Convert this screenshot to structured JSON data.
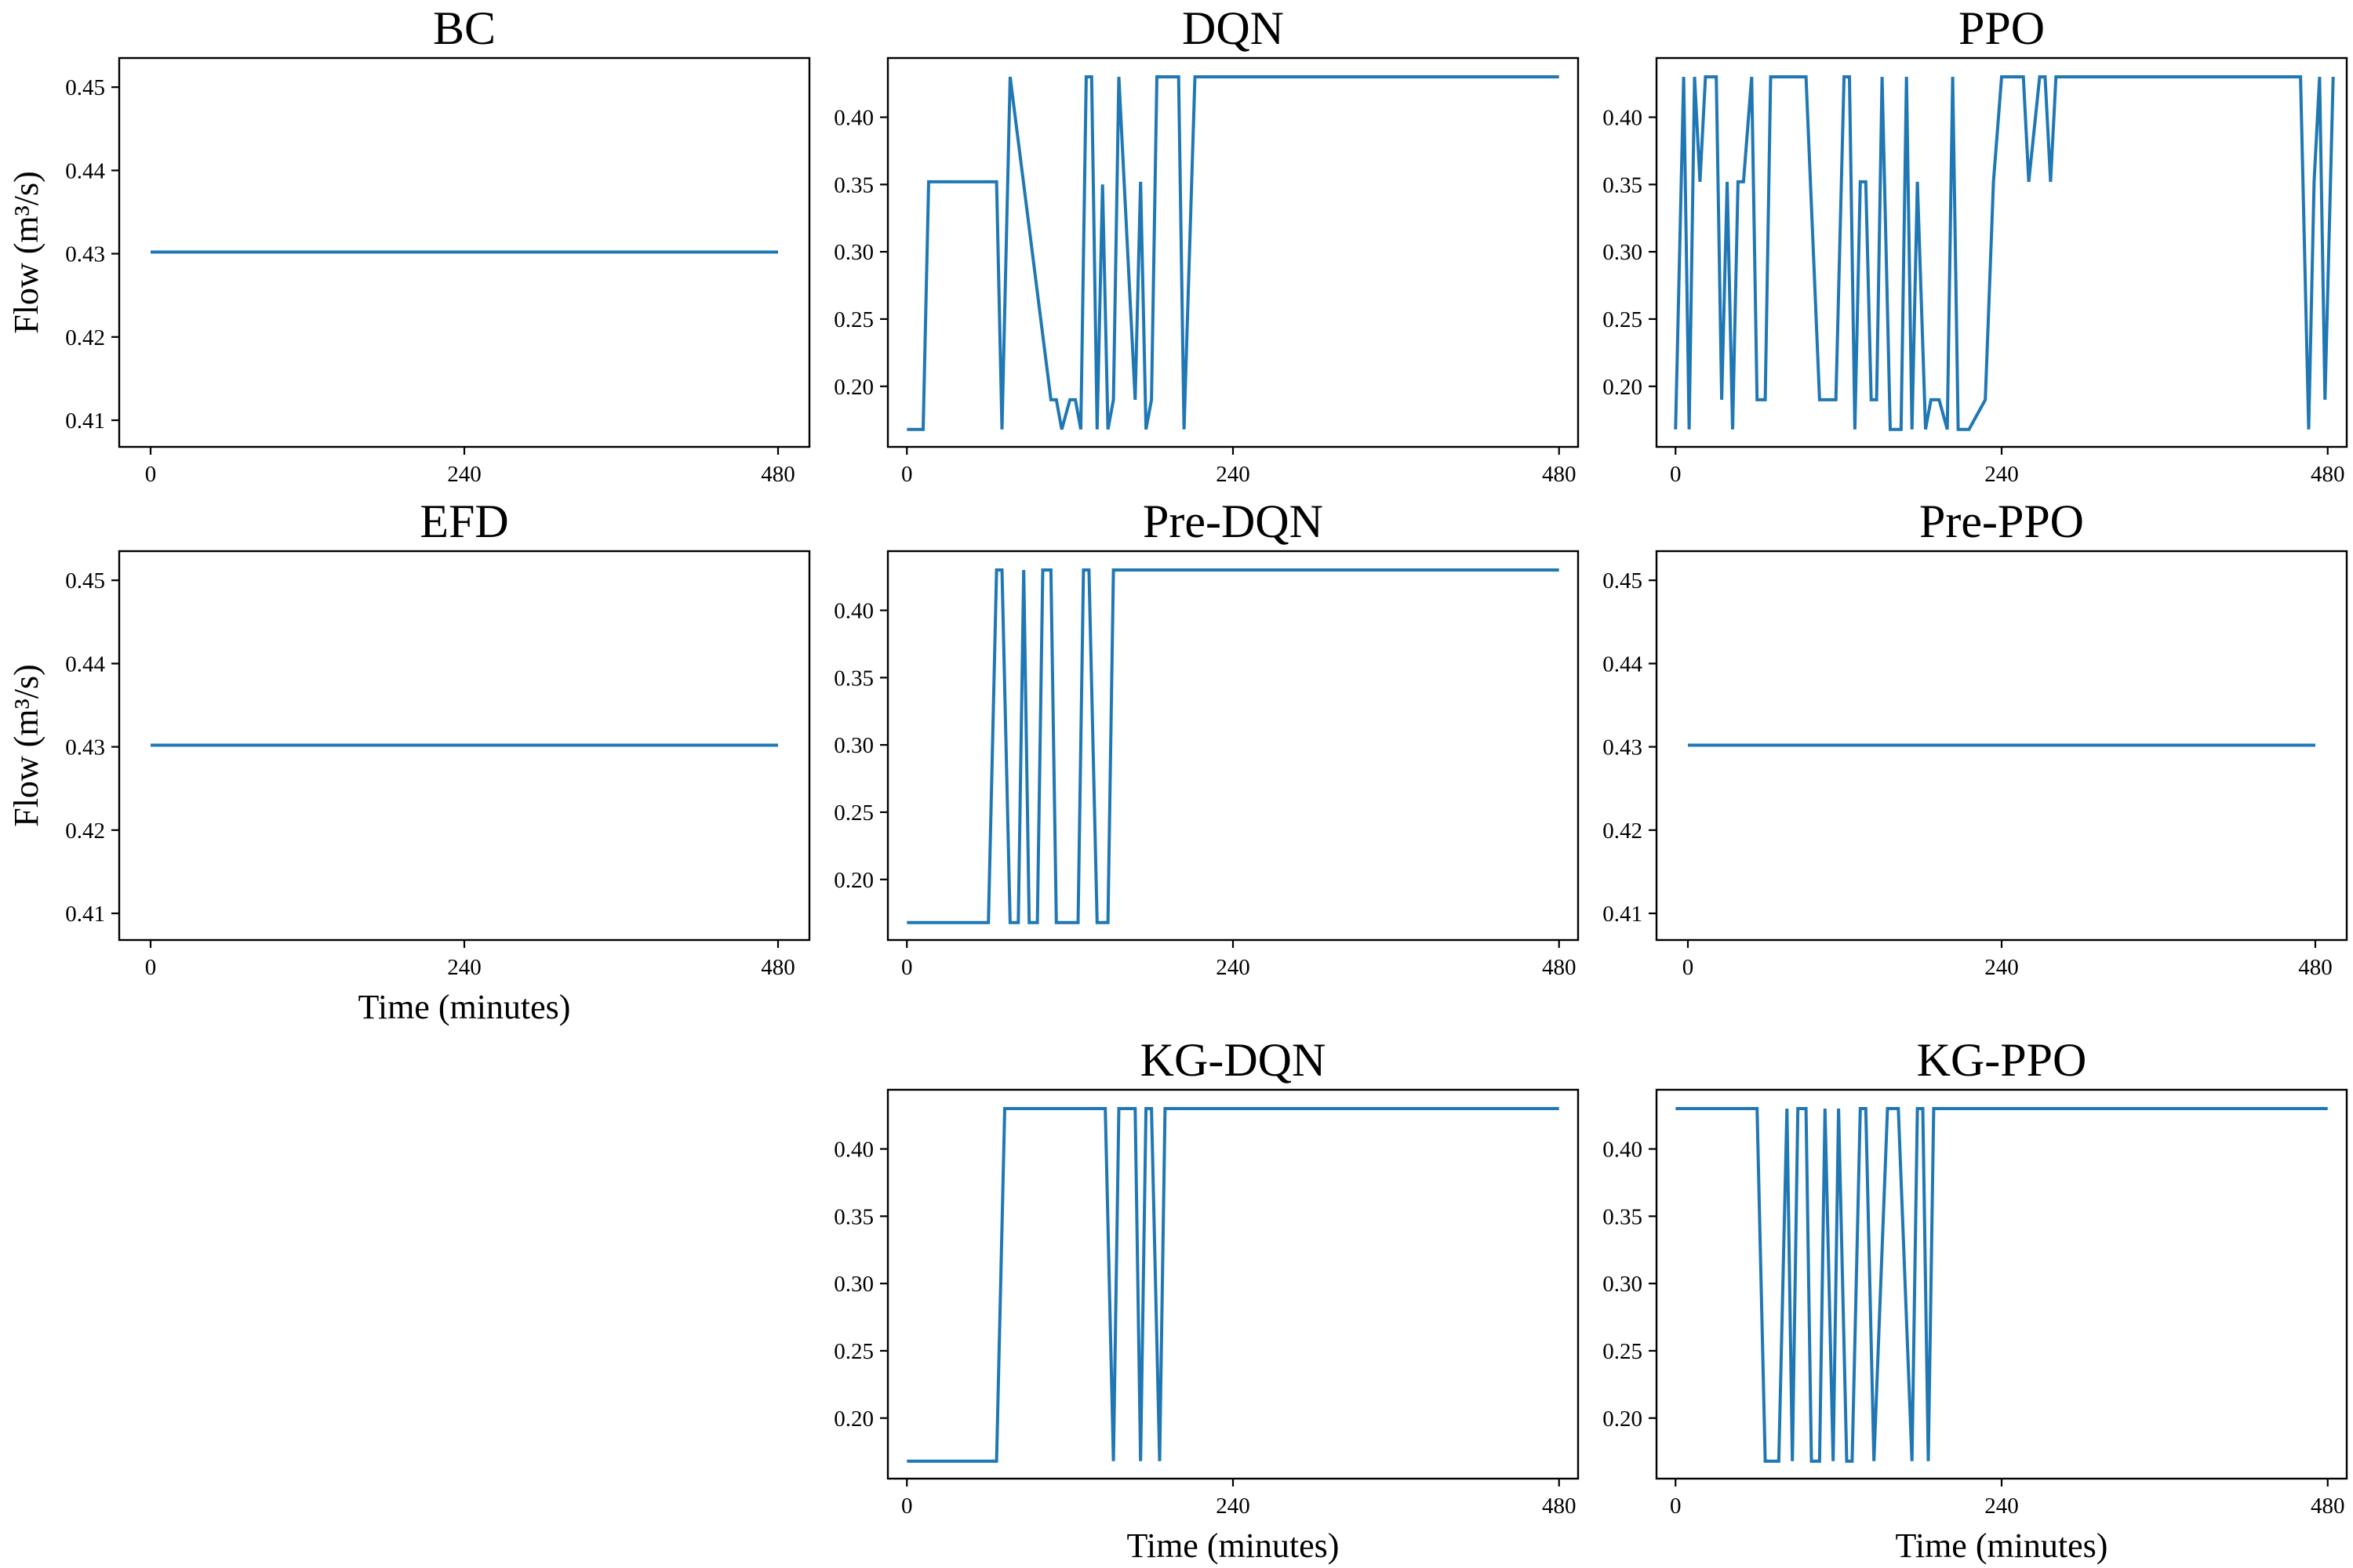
{
  "colors": {
    "line": "#1f77b4",
    "axis": "#000000",
    "background": "#ffffff"
  },
  "chart_data": [
    {
      "type": "line",
      "title": "BC",
      "xlabel": "",
      "ylabel": "Flow (m³/s)",
      "xlim": [
        -24,
        504
      ],
      "ylim": [
        0.4068,
        0.4535
      ],
      "xticks": [
        0,
        240,
        480
      ],
      "xtick_labels": [
        "0",
        "240",
        "480"
      ],
      "yticks": [
        0.41,
        0.42,
        0.43,
        0.44,
        0.45
      ],
      "ytick_labels": [
        "0.41",
        "0.42",
        "0.43",
        "0.44",
        "0.45"
      ],
      "series": [
        {
          "name": "BC",
          "x": [
            0,
            480
          ],
          "y": [
            0.4302,
            0.4302
          ]
        }
      ]
    },
    {
      "type": "line",
      "title": "DQN",
      "xlabel": "",
      "ylabel": "",
      "xlim": [
        -14,
        494
      ],
      "ylim": [
        0.155,
        0.444
      ],
      "xticks": [
        0,
        240,
        480
      ],
      "xtick_labels": [
        "0",
        "240",
        "480"
      ],
      "yticks": [
        0.2,
        0.25,
        0.3,
        0.35,
        0.4
      ],
      "ytick_labels": [
        "0.20",
        "0.25",
        "0.30",
        "0.35",
        "0.40"
      ],
      "series": [
        {
          "name": "DQN",
          "x": [
            0,
            12,
            16,
            60,
            66,
            70,
            76,
            106,
            110,
            114,
            120,
            124,
            128,
            132,
            136,
            140,
            144,
            148,
            152,
            156,
            160,
            168,
            172,
            176,
            180,
            184,
            190,
            196,
            200,
            204,
            212,
            216,
            480
          ],
          "y": [
            0.168,
            0.168,
            0.352,
            0.352,
            0.352,
            0.168,
            0.43,
            0.19,
            0.19,
            0.168,
            0.19,
            0.19,
            0.168,
            0.43,
            0.43,
            0.168,
            0.35,
            0.168,
            0.19,
            0.43,
            0.35,
            0.19,
            0.352,
            0.168,
            0.19,
            0.43,
            0.43,
            0.43,
            0.43,
            0.168,
            0.43,
            0.43,
            0.43
          ]
        }
      ]
    },
    {
      "type": "line",
      "title": "PPO",
      "xlabel": "",
      "ylabel": "",
      "xlim": [
        -14,
        494
      ],
      "ylim": [
        0.155,
        0.444
      ],
      "xticks": [
        0,
        240,
        480
      ],
      "xtick_labels": [
        "0",
        "240",
        "480"
      ],
      "yticks": [
        0.2,
        0.25,
        0.3,
        0.35,
        0.4
      ],
      "ytick_labels": [
        "0.20",
        "0.25",
        "0.30",
        "0.35",
        "0.40"
      ],
      "series": [
        {
          "name": "PPO",
          "x": [
            0,
            6,
            10,
            14,
            18,
            22,
            26,
            28,
            30,
            34,
            38,
            42,
            46,
            50,
            56,
            60,
            66,
            70,
            74,
            80,
            84,
            90,
            96,
            106,
            110,
            114,
            118,
            124,
            128,
            132,
            136,
            140,
            144,
            148,
            152,
            158,
            162,
            166,
            170,
            174,
            178,
            184,
            188,
            194,
            200,
            204,
            208,
            212,
            216,
            228,
            234,
            240,
            244,
            248,
            252,
            256,
            260,
            268,
            272,
            276,
            280,
            284,
            290,
            300,
            310,
            320,
            330,
            340,
            350,
            360,
            370,
            380,
            390,
            400,
            410,
            420,
            430,
            440,
            450,
            460,
            466,
            470,
            474,
            478,
            484
          ],
          "y": [
            0.168,
            0.43,
            0.168,
            0.43,
            0.352,
            0.43,
            0.43,
            0.43,
            0.43,
            0.19,
            0.352,
            0.168,
            0.352,
            0.352,
            0.43,
            0.19,
            0.19,
            0.43,
            0.43,
            0.43,
            0.43,
            0.43,
            0.43,
            0.19,
            0.19,
            0.19,
            0.19,
            0.43,
            0.43,
            0.168,
            0.352,
            0.352,
            0.19,
            0.19,
            0.43,
            0.168,
            0.168,
            0.168,
            0.43,
            0.168,
            0.352,
            0.168,
            0.19,
            0.19,
            0.168,
            0.43,
            0.168,
            0.168,
            0.168,
            0.19,
            0.352,
            0.43,
            0.43,
            0.43,
            0.43,
            0.43,
            0.352,
            0.43,
            0.43,
            0.352,
            0.43,
            0.43,
            0.43,
            0.43,
            0.43,
            0.43,
            0.43,
            0.43,
            0.43,
            0.43,
            0.43,
            0.43,
            0.43,
            0.43,
            0.43,
            0.43,
            0.43,
            0.43,
            0.43,
            0.43,
            0.168,
            0.352,
            0.43,
            0.19,
            0.43
          ]
        }
      ]
    },
    {
      "type": "line",
      "title": "EFD",
      "xlabel": "Time (minutes)",
      "ylabel": "Flow (m³/s)",
      "xlim": [
        -24,
        504
      ],
      "ylim": [
        0.4068,
        0.4535
      ],
      "xticks": [
        0,
        240,
        480
      ],
      "xtick_labels": [
        "0",
        "240",
        "480"
      ],
      "yticks": [
        0.41,
        0.42,
        0.43,
        0.44,
        0.45
      ],
      "ytick_labels": [
        "0.41",
        "0.42",
        "0.43",
        "0.44",
        "0.45"
      ],
      "series": [
        {
          "name": "EFD",
          "x": [
            0,
            480
          ],
          "y": [
            0.4302,
            0.4302
          ]
        }
      ]
    },
    {
      "type": "line",
      "title": "Pre-DQN",
      "xlabel": "",
      "ylabel": "",
      "xlim": [
        -14,
        494
      ],
      "ylim": [
        0.155,
        0.444
      ],
      "xticks": [
        0,
        240,
        480
      ],
      "xtick_labels": [
        "0",
        "240",
        "480"
      ],
      "yticks": [
        0.2,
        0.25,
        0.3,
        0.35,
        0.4
      ],
      "ytick_labels": [
        "0.20",
        "0.25",
        "0.30",
        "0.35",
        "0.40"
      ],
      "series": [
        {
          "name": "Pre-DQN",
          "x": [
            0,
            60,
            66,
            70,
            76,
            82,
            86,
            90,
            96,
            100,
            106,
            110,
            126,
            130,
            134,
            140,
            148,
            152,
            480
          ],
          "y": [
            0.168,
            0.168,
            0.43,
            0.43,
            0.168,
            0.168,
            0.43,
            0.168,
            0.168,
            0.43,
            0.43,
            0.168,
            0.168,
            0.43,
            0.43,
            0.168,
            0.168,
            0.43,
            0.43
          ]
        }
      ]
    },
    {
      "type": "line",
      "title": "Pre-PPO",
      "xlabel": "",
      "ylabel": "",
      "xlim": [
        -24,
        504
      ],
      "ylim": [
        0.4068,
        0.4535
      ],
      "xticks": [
        0,
        240,
        480
      ],
      "xtick_labels": [
        "0",
        "240",
        "480"
      ],
      "yticks": [
        0.41,
        0.42,
        0.43,
        0.44,
        0.45
      ],
      "ytick_labels": [
        "0.41",
        "0.42",
        "0.43",
        "0.44",
        "0.45"
      ],
      "series": [
        {
          "name": "Pre-PPO",
          "x": [
            0,
            480
          ],
          "y": [
            0.4302,
            0.4302
          ]
        }
      ]
    },
    {
      "type": "line",
      "title": "KG-DQN",
      "xlabel": "Time (minutes)",
      "ylabel": "",
      "xlim": [
        -14,
        494
      ],
      "ylim": [
        0.155,
        0.444
      ],
      "xticks": [
        0,
        240,
        480
      ],
      "xtick_labels": [
        "0",
        "240",
        "480"
      ],
      "yticks": [
        0.2,
        0.25,
        0.3,
        0.35,
        0.4
      ],
      "ytick_labels": [
        "0.20",
        "0.25",
        "0.30",
        "0.35",
        "0.40"
      ],
      "series": [
        {
          "name": "KG-DQN",
          "x": [
            0,
            66,
            72,
            146,
            152,
            156,
            168,
            172,
            176,
            180,
            186,
            190,
            480
          ],
          "y": [
            0.168,
            0.168,
            0.43,
            0.43,
            0.168,
            0.43,
            0.43,
            0.168,
            0.43,
            0.43,
            0.168,
            0.43,
            0.43
          ]
        }
      ]
    },
    {
      "type": "line",
      "title": "KG-PPO",
      "xlabel": "Time (minutes)",
      "ylabel": "",
      "xlim": [
        -14,
        494
      ],
      "ylim": [
        0.155,
        0.444
      ],
      "xticks": [
        0,
        240,
        480
      ],
      "xtick_labels": [
        "0",
        "240",
        "480"
      ],
      "yticks": [
        0.2,
        0.25,
        0.3,
        0.35,
        0.4
      ],
      "ytick_labels": [
        "0.20",
        "0.25",
        "0.30",
        "0.35",
        "0.40"
      ],
      "series": [
        {
          "name": "KG-PPO",
          "x": [
            0,
            60,
            66,
            76,
            82,
            86,
            90,
            96,
            100,
            106,
            110,
            116,
            120,
            126,
            130,
            136,
            140,
            146,
            156,
            160,
            164,
            174,
            178,
            182,
            186,
            190,
            194,
            480
          ],
          "y": [
            0.43,
            0.43,
            0.168,
            0.168,
            0.43,
            0.168,
            0.43,
            0.43,
            0.168,
            0.168,
            0.43,
            0.168,
            0.43,
            0.168,
            0.168,
            0.43,
            0.43,
            0.168,
            0.43,
            0.43,
            0.43,
            0.168,
            0.43,
            0.43,
            0.168,
            0.43,
            0.43,
            0.43
          ]
        }
      ]
    }
  ]
}
